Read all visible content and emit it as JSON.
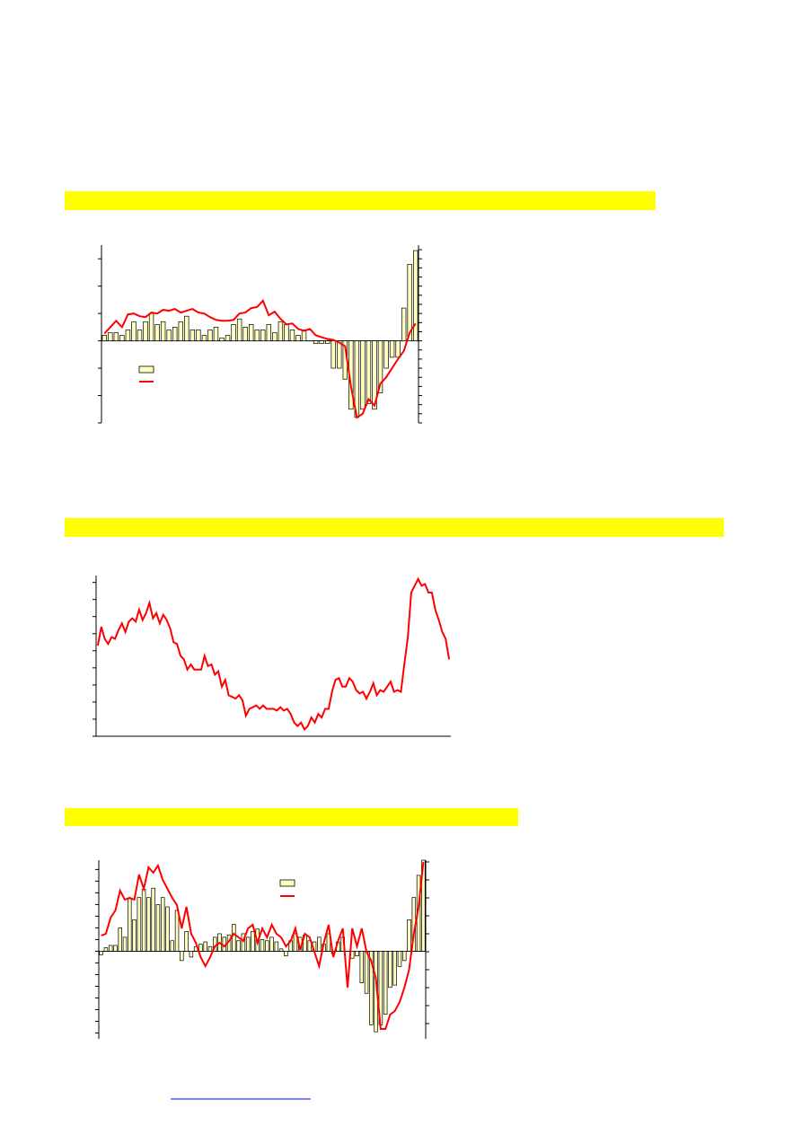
{
  "chart_data": [
    {
      "type": "bar",
      "ylim": [
        -3,
        3.5
      ],
      "yticks": [
        -3,
        -2,
        -1,
        0,
        1,
        2,
        3
      ],
      "y2lim": [
        -9,
        10.5
      ],
      "y2ticks": [
        -9,
        -8,
        -7,
        -6,
        -5,
        -4,
        -3,
        -2,
        -1,
        0,
        1,
        2,
        3,
        4,
        5,
        6,
        7,
        8,
        9,
        10
      ],
      "series": [
        {
          "type": "bar",
          "color": "#ffffc0",
          "values": [
            0.2,
            0.3,
            0.3,
            0.2,
            0.4,
            0.7,
            0.4,
            0.7,
            1.0,
            0.6,
            0.7,
            0.4,
            0.5,
            0.7,
            0.9,
            0.4,
            0.4,
            0.2,
            0.4,
            0.5,
            0.1,
            0.2,
            0.6,
            0.8,
            0.5,
            0.6,
            0.4,
            0.4,
            0.6,
            0.3,
            0.7,
            0.6,
            0.4,
            0.2,
            0.4,
            0,
            -0.1,
            -0.1,
            -0.1,
            -1.0,
            -1.0,
            -1.4,
            -2.5,
            -2.8,
            -2.5,
            -2.3,
            -2.5,
            -1.9,
            -1.0,
            -0.6,
            -0.6,
            1.2,
            2.8,
            3.3
          ]
        },
        {
          "type": "line",
          "axis": "y2",
          "color": "#ff0000",
          "values": [
            0.8,
            1.5,
            2.2,
            1.5,
            2.9,
            3.0,
            2.7,
            2.6,
            3.1,
            3.0,
            3.4,
            3.3,
            3.5,
            3.1,
            3.3,
            3.5,
            3.1,
            3.0,
            2.6,
            2.3,
            2.2,
            2.2,
            2.3,
            3.0,
            3.1,
            3.6,
            3.7,
            4.4,
            2.8,
            3.2,
            2.4,
            1.8,
            1.9,
            1.3,
            1.1,
            1.3,
            0.6,
            0.4,
            0.2,
            0.1,
            -0.2,
            -0.6,
            -5.0,
            -8.4,
            -8.0,
            -6.4,
            -7.1,
            -4.7,
            -4.0,
            -3.0,
            -2.0,
            -1.1,
            0.9,
            1.9
          ]
        }
      ]
    },
    {
      "type": "line",
      "ylim": [
        0,
        9.4
      ],
      "yticks": [
        0,
        1,
        2,
        3,
        4,
        5,
        6,
        7,
        8,
        9
      ],
      "series": [
        {
          "type": "line",
          "color": "#ff0000",
          "values": [
            5.3,
            6.4,
            5.7,
            5.4,
            5.8,
            5.7,
            6.2,
            6.6,
            6.1,
            6.7,
            6.9,
            6.7,
            7.4,
            6.8,
            7.2,
            7.8,
            6.9,
            7.2,
            6.6,
            7.1,
            6.8,
            6.3,
            5.5,
            5.4,
            4.7,
            4.5,
            3.9,
            4.2,
            3.9,
            3.9,
            3.9,
            4.7,
            4.1,
            4.2,
            3.6,
            3.8,
            2.9,
            3.3,
            2.4,
            2.3,
            2.2,
            2.4,
            2.1,
            1.2,
            1.6,
            1.7,
            1.8,
            1.6,
            1.8,
            1.6,
            1.6,
            1.6,
            1.5,
            1.7,
            1.5,
            1.6,
            1.3,
            0.8,
            0.6,
            0.8,
            0.4,
            0.6,
            1.1,
            0.8,
            1.3,
            1.1,
            1.6,
            1.6,
            2.6,
            3.3,
            3.4,
            2.9,
            2.9,
            3.4,
            3.2,
            2.7,
            2.5,
            2.6,
            2.2,
            2.6,
            3.1,
            2.4,
            2.7,
            2.6,
            2.9,
            3.2,
            2.6,
            2.7,
            2.6,
            4.2,
            5.8,
            8.4,
            8.8,
            9.2,
            8.8,
            8.9,
            8.4,
            8.4,
            7.4,
            6.8,
            6.1,
            5.7,
            4.5
          ]
        }
      ]
    },
    {
      "type": "bar",
      "ylim": [
        -7.5,
        7.8
      ],
      "yticks": [
        -7,
        -6,
        -5,
        -4,
        -3,
        -2,
        -1,
        0,
        1,
        2,
        3,
        4,
        5,
        6,
        7
      ],
      "y2lim": [
        -4.85,
        5.1
      ],
      "y2ticks": [
        -4,
        -3,
        -2,
        -1,
        0,
        1,
        2,
        3,
        4,
        5
      ],
      "series": [
        {
          "type": "bar",
          "color": "#ffffc0",
          "values": [
            -0.3,
            0.3,
            0.5,
            0.5,
            2.0,
            1.2,
            4.5,
            2.7,
            4.6,
            5.3,
            4.6,
            5.4,
            4.0,
            4.6,
            3.8,
            0.9,
            3.5,
            -0.8,
            1.7,
            -0.5,
            0.4,
            0.6,
            0.8,
            0.4,
            1.2,
            1.5,
            1.2,
            1.4,
            2.3,
            0.9,
            1.5,
            1.2,
            1.7,
            1.9,
            1.0,
            0.9,
            1.2,
            0.8,
            0.2,
            -0.4,
            0.9,
            1.5,
            1.2,
            1.4,
            0.9,
            0.8,
            1.2,
            0.6,
            1.5,
            -0.2,
            0.8,
            1.2,
            0,
            -0.6,
            -0.4,
            -2.7,
            -3.6,
            -6.3,
            -6.9,
            -6.3,
            -5.4,
            -3.1,
            -2.9,
            -1.3,
            -0.8,
            2.7,
            4.6,
            6.5,
            7.8
          ]
        },
        {
          "type": "line",
          "axis": "y2",
          "color": "#ff0000",
          "values": [
            0.9,
            1.0,
            1.9,
            2.3,
            3.4,
            2.9,
            3.0,
            2.9,
            4.3,
            3.5,
            4.7,
            4.4,
            4.8,
            4.0,
            3.5,
            3.0,
            2.6,
            1.3,
            2.5,
            1.0,
            0.5,
            -0.3,
            -0.8,
            -0.3,
            0.3,
            0.5,
            0.3,
            0.6,
            1.0,
            0.8,
            0.6,
            1.3,
            1.5,
            0.5,
            1.3,
            0.8,
            1.5,
            1.0,
            0.8,
            0.3,
            0.6,
            1.3,
            0.1,
            1.0,
            0.8,
            0,
            -0.8,
            0.5,
            1.5,
            -0.3,
            0.6,
            1.3,
            -2.0,
            1.3,
            0.3,
            1.3,
            0,
            -0.5,
            -1.5,
            -4.3,
            -4.3,
            -3.5,
            -3.3,
            -2.8,
            -2.0,
            -1.0,
            1.0,
            2.5,
            5.0
          ]
        }
      ]
    }
  ]
}
